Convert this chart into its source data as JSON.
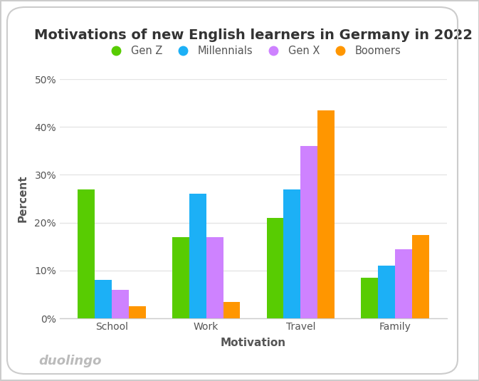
{
  "title": "Motivations of new English learners in Germany in 2022",
  "xlabel": "Motivation",
  "ylabel": "Percent",
  "categories": [
    "School",
    "Work",
    "Travel",
    "Family"
  ],
  "generations": [
    "Gen Z",
    "Millennials",
    "Gen X",
    "Boomers"
  ],
  "values": {
    "Gen Z": [
      27,
      17,
      21,
      8.5
    ],
    "Millennials": [
      8,
      26,
      27,
      11
    ],
    "Gen X": [
      6,
      17,
      36,
      14.5
    ],
    "Boomers": [
      2.5,
      3.5,
      43.5,
      17.5
    ]
  },
  "colors": {
    "Gen Z": "#58CC02",
    "Millennials": "#1CB0F6",
    "Gen X": "#CE82FF",
    "Boomers": "#FF9600"
  },
  "ylim": [
    0,
    50
  ],
  "yticks": [
    0,
    10,
    20,
    30,
    40,
    50
  ],
  "ytick_labels": [
    "0%",
    "10%",
    "20%",
    "30%",
    "40%",
    "50%"
  ],
  "bar_width": 0.18,
  "background_color": "#FFFFFF",
  "grid_color": "#E5E5E5",
  "title_fontsize": 14,
  "axis_label_fontsize": 11,
  "tick_fontsize": 10,
  "legend_fontsize": 10.5,
  "watermark": "duolingo",
  "watermark_color": "#BBBBBB",
  "watermark_fontsize": 13,
  "text_color": "#555555",
  "border_color": "#CCCCCC"
}
